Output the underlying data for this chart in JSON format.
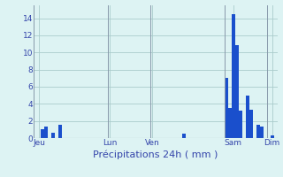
{
  "xlabel": "Précipitations 24h ( mm )",
  "background_color": "#ddf3f3",
  "bar_color": "#1a4fcc",
  "ylim": [
    0,
    15.5
  ],
  "yticks": [
    0,
    2,
    4,
    6,
    8,
    10,
    12,
    14
  ],
  "grid_color": "#aacccc",
  "bar_values": [
    0,
    0,
    1.0,
    1.3,
    0,
    0.6,
    0,
    1.6,
    0,
    0,
    0,
    0,
    0,
    0,
    0,
    0,
    0,
    0,
    0,
    0,
    0,
    0,
    0,
    0,
    0,
    0,
    0,
    0,
    0,
    0,
    0,
    0,
    0,
    0,
    0,
    0,
    0,
    0,
    0,
    0,
    0,
    0,
    0.5,
    0,
    0,
    0,
    0,
    0,
    0,
    0,
    0,
    0,
    0,
    0,
    7.0,
    3.5,
    14.5,
    10.8,
    3.2,
    0,
    5.0,
    3.3,
    0,
    1.5,
    1.3,
    0,
    0,
    0.3,
    0
  ],
  "n_bars": 69,
  "day_labels": [
    "Jeu",
    "Lun",
    "Ven",
    "Sam",
    "Dim"
  ],
  "day_tick_x": [
    1,
    21,
    33,
    56,
    67
  ],
  "vline_x": [
    0,
    21,
    33,
    54,
    66
  ],
  "xlim": [
    -0.5,
    68.5
  ]
}
